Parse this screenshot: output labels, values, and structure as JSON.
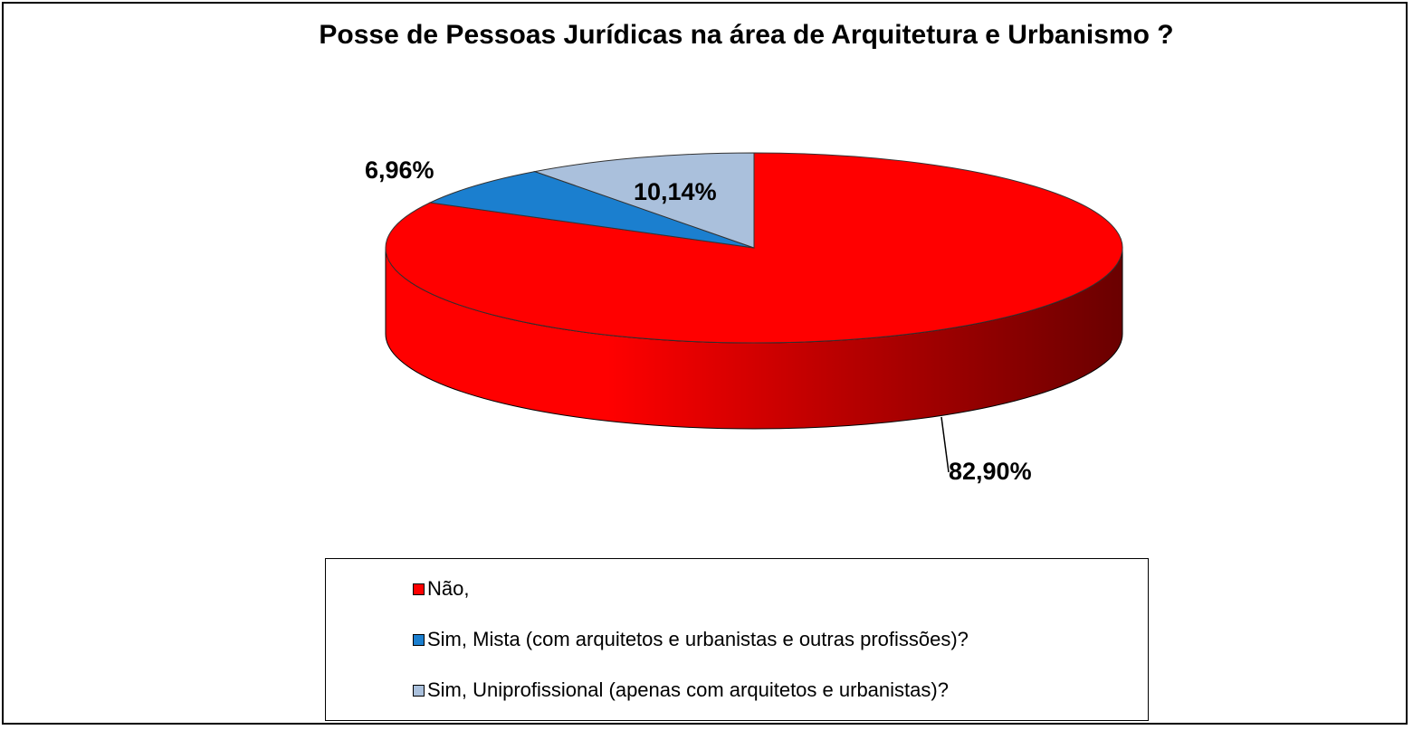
{
  "chart_data": {
    "type": "pie",
    "title": "Posse de Pessoas Jurídicas na área de Arquitetura e Urbanismo ?",
    "slices": [
      {
        "label": "Não,",
        "value": 82.9,
        "display": "82,90%",
        "color": "#ff0000"
      },
      {
        "label": "Sim, Mista (com arquitetos e urbanistas e outras profissões)?",
        "value": 6.96,
        "display": "6,96%",
        "color": "#1b7fcf"
      },
      {
        "label": "Sim, Uniprofissional (apenas com arquitetos e urbanistas)?",
        "value": 10.14,
        "display": "10,14%",
        "color": "#aac0dc"
      }
    ],
    "legend_position": "bottom"
  }
}
